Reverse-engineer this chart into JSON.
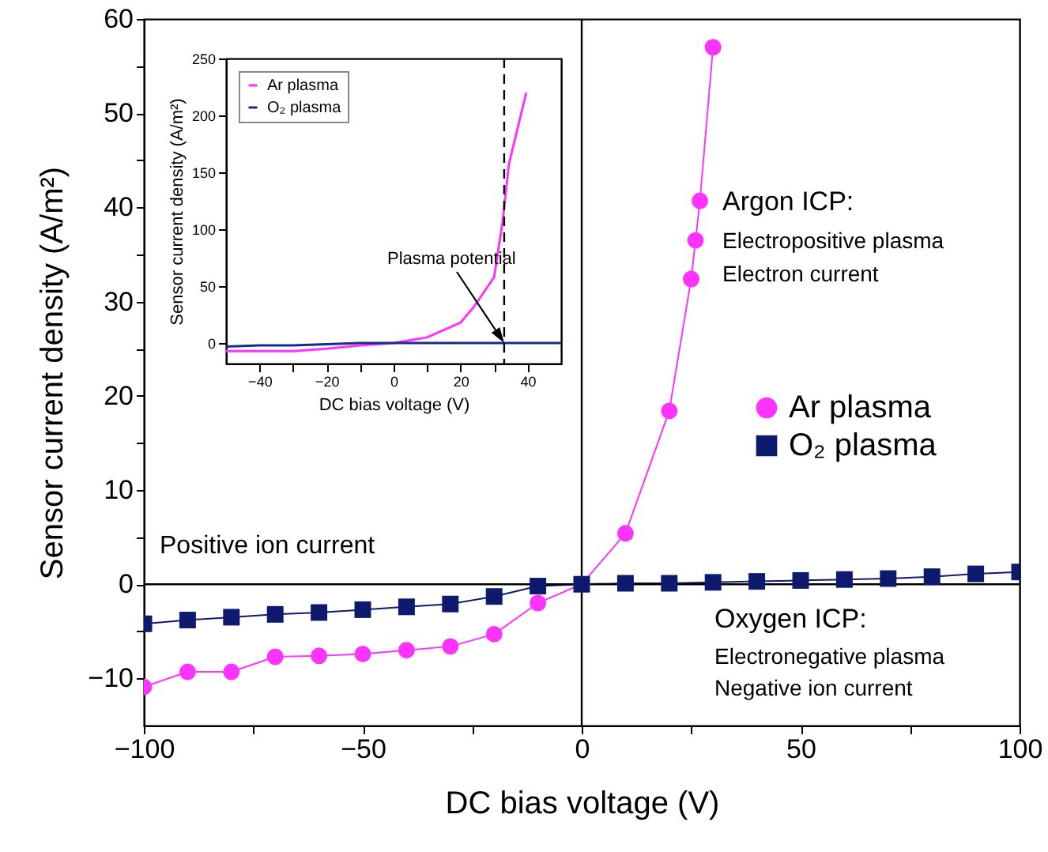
{
  "chart_data": [
    {
      "type": "line",
      "xlabel": "DC bias voltage (V)",
      "ylabel": "Sensor current density (A/m²)",
      "xlim": [
        -100,
        100
      ],
      "xticks": [
        -100,
        {
          "value": -75,
          "label": null
        },
        -50,
        {
          "value": -25,
          "label": null
        },
        0,
        {
          "value": 25,
          "label": null
        },
        50,
        {
          "value": 75,
          "label": null
        },
        100
      ],
      "ylim": [
        -15,
        60
      ],
      "yticks": [
        -10,
        {
          "value": -5,
          "label": null
        },
        0,
        {
          "value": 5,
          "label": null
        },
        10,
        {
          "value": 15,
          "label": null
        },
        20,
        {
          "value": 25,
          "label": null
        },
        30,
        {
          "value": 35,
          "label": null
        },
        40,
        {
          "value": 45,
          "label": null
        },
        50,
        {
          "value": 55,
          "label": null
        },
        60
      ],
      "grid": false,
      "legend": "right",
      "series": [
        {
          "name": "Ar plasma",
          "color": "#ff33ff",
          "marker": "circle",
          "x": [
            -100,
            -90,
            -80,
            -70,
            -60,
            -50,
            -40,
            -30,
            -20,
            -10,
            0,
            10,
            20,
            25,
            26,
            27,
            30
          ],
          "values": [
            -10.9,
            -9.3,
            -9.3,
            -7.7,
            -7.6,
            -7.4,
            -7.0,
            -6.6,
            -5.3,
            -2.0,
            0,
            5.4,
            18.4,
            32.4,
            36.5,
            40.7,
            57
          ]
        },
        {
          "name": "O₂ plasma",
          "color": "#0d1a6e",
          "marker": "square",
          "x": [
            -100,
            -90,
            -80,
            -70,
            -60,
            -50,
            -40,
            -30,
            -20,
            -10,
            0,
            10,
            20,
            30,
            40,
            50,
            60,
            70,
            80,
            90,
            100
          ],
          "values": [
            -4.2,
            -3.8,
            -3.5,
            -3.2,
            -3.0,
            -2.7,
            -2.4,
            -2.1,
            -1.3,
            -0.2,
            0,
            0.1,
            0.1,
            0.2,
            0.3,
            0.4,
            0.5,
            0.6,
            0.8,
            1.1,
            1.3
          ]
        }
      ],
      "ref_lines": [
        {
          "axis": "x",
          "value": 0,
          "color": "#000000"
        },
        {
          "axis": "y",
          "value": 0,
          "color": "#000000"
        }
      ],
      "annotations": [
        "Positive ion current",
        "Argon ICP:",
        "Electropositive plasma",
        "Electron current",
        "Oxygen ICP:",
        "Electronegative plasma",
        "Negative ion current"
      ]
    },
    {
      "type": "line",
      "xlabel": "DC bias voltage (V)",
      "ylabel": "Sensor current density (A/m²)",
      "xlim": [
        -50,
        50
      ],
      "xticks": [
        -40,
        {
          "value": -30,
          "label": null
        },
        -20,
        {
          "value": -10,
          "label": null
        },
        0,
        {
          "value": 10,
          "label": null
        },
        20,
        {
          "value": 30,
          "label": null
        },
        40
      ],
      "ylim": [
        -18,
        250
      ],
      "yticks": [
        0,
        50,
        100,
        150,
        200,
        250
      ],
      "grid": false,
      "legend": "top left",
      "marker": "none",
      "series": [
        {
          "name": "Ar plasma",
          "color": "#ff33ff",
          "x": [
            -50,
            -40,
            -30,
            -20,
            -10,
            0,
            10,
            20,
            24,
            30,
            32.5,
            34.4,
            39.6
          ],
          "values": [
            -7,
            -7,
            -7,
            -5,
            -2,
            0,
            5,
            18,
            32,
            58,
            106,
            157,
            220
          ]
        },
        {
          "name": "O₂ plasma",
          "color": "#1a2a8a",
          "x": [
            -50,
            -40,
            -30,
            -20,
            -10,
            0,
            10,
            20,
            30,
            40,
            50
          ],
          "values": [
            -3,
            -2,
            -2,
            -1,
            0,
            0,
            0,
            0,
            0,
            0,
            0
          ]
        }
      ],
      "ref_lines": [
        {
          "axis": "x",
          "value": 33,
          "color": "#000000",
          "line_style": "dashed"
        }
      ],
      "annotations": [
        "Plasma potential"
      ]
    }
  ]
}
